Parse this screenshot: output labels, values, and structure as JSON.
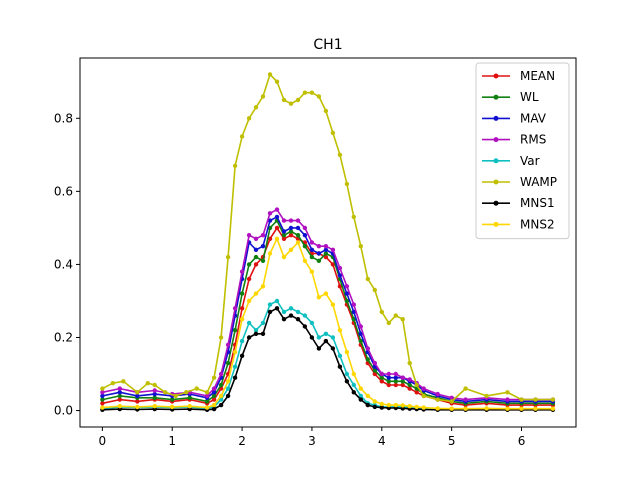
{
  "chart_data": {
    "type": "line",
    "title": "CH1",
    "xlabel": "",
    "ylabel": "",
    "xlim": [
      -0.32,
      6.78
    ],
    "ylim": [
      -0.045,
      0.965
    ],
    "xticks": [
      0,
      1,
      2,
      3,
      4,
      5,
      6
    ],
    "yticks": [
      0.0,
      0.2,
      0.4,
      0.6,
      0.8
    ],
    "ytick_labels": [
      "0.0",
      "0.2",
      "0.4",
      "0.6",
      "0.8"
    ],
    "legend_position": "top-right",
    "grid": false,
    "series": [
      {
        "name": "MEAN",
        "color": "#e01010",
        "x": [
          0,
          0.25,
          0.5,
          0.75,
          1,
          1.25,
          1.5,
          1.6,
          1.7,
          1.8,
          1.9,
          2,
          2.1,
          2.2,
          2.3,
          2.4,
          2.5,
          2.6,
          2.7,
          2.8,
          2.9,
          3,
          3.1,
          3.2,
          3.3,
          3.4,
          3.5,
          3.6,
          3.7,
          3.8,
          3.9,
          4,
          4.1,
          4.2,
          4.3,
          4.4,
          4.5,
          4.6,
          4.8,
          5,
          5.2,
          5.5,
          5.8,
          6,
          6.2,
          6.45
        ],
        "y": [
          0.02,
          0.03,
          0.025,
          0.03,
          0.025,
          0.03,
          0.02,
          0.03,
          0.06,
          0.1,
          0.18,
          0.28,
          0.36,
          0.4,
          0.42,
          0.47,
          0.5,
          0.47,
          0.48,
          0.47,
          0.46,
          0.43,
          0.43,
          0.42,
          0.4,
          0.34,
          0.29,
          0.24,
          0.18,
          0.13,
          0.1,
          0.08,
          0.07,
          0.07,
          0.07,
          0.06,
          0.05,
          0.04,
          0.03,
          0.02,
          0.015,
          0.02,
          0.015,
          0.015,
          0.015,
          0.015
        ]
      },
      {
        "name": "WL",
        "color": "#108010",
        "x": [
          0,
          0.25,
          0.5,
          0.75,
          1,
          1.25,
          1.5,
          1.6,
          1.7,
          1.8,
          1.9,
          2,
          2.1,
          2.2,
          2.3,
          2.4,
          2.5,
          2.6,
          2.7,
          2.8,
          2.9,
          3,
          3.1,
          3.2,
          3.3,
          3.4,
          3.5,
          3.6,
          3.7,
          3.8,
          3.9,
          4,
          4.1,
          4.2,
          4.3,
          4.4,
          4.5,
          4.6,
          4.8,
          5,
          5.2,
          5.5,
          5.8,
          6,
          6.2,
          6.45
        ],
        "y": [
          0.03,
          0.04,
          0.035,
          0.035,
          0.03,
          0.035,
          0.025,
          0.04,
          0.07,
          0.13,
          0.22,
          0.32,
          0.4,
          0.42,
          0.41,
          0.5,
          0.52,
          0.48,
          0.49,
          0.48,
          0.45,
          0.42,
          0.41,
          0.43,
          0.42,
          0.36,
          0.3,
          0.25,
          0.19,
          0.14,
          0.11,
          0.09,
          0.08,
          0.08,
          0.08,
          0.07,
          0.06,
          0.045,
          0.035,
          0.025,
          0.02,
          0.025,
          0.02,
          0.02,
          0.02,
          0.02
        ]
      },
      {
        "name": "MAV",
        "color": "#1010d0",
        "x": [
          0,
          0.25,
          0.5,
          0.75,
          1,
          1.25,
          1.5,
          1.6,
          1.7,
          1.8,
          1.9,
          2,
          2.1,
          2.2,
          2.3,
          2.4,
          2.5,
          2.6,
          2.7,
          2.8,
          2.9,
          3,
          3.1,
          3.2,
          3.3,
          3.4,
          3.5,
          3.6,
          3.7,
          3.8,
          3.9,
          4,
          4.1,
          4.2,
          4.3,
          4.4,
          4.5,
          4.6,
          4.8,
          5,
          5.2,
          5.5,
          5.8,
          6,
          6.2,
          6.45
        ],
        "y": [
          0.04,
          0.05,
          0.04,
          0.045,
          0.04,
          0.045,
          0.035,
          0.05,
          0.09,
          0.16,
          0.26,
          0.36,
          0.46,
          0.44,
          0.45,
          0.52,
          0.53,
          0.49,
          0.5,
          0.5,
          0.48,
          0.44,
          0.43,
          0.44,
          0.43,
          0.37,
          0.32,
          0.27,
          0.21,
          0.16,
          0.12,
          0.1,
          0.09,
          0.09,
          0.09,
          0.08,
          0.07,
          0.055,
          0.04,
          0.03,
          0.025,
          0.03,
          0.025,
          0.025,
          0.025,
          0.025
        ]
      },
      {
        "name": "RMS",
        "color": "#b010c0",
        "x": [
          0,
          0.25,
          0.5,
          0.75,
          1,
          1.25,
          1.5,
          1.6,
          1.7,
          1.8,
          1.9,
          2,
          2.1,
          2.2,
          2.3,
          2.4,
          2.5,
          2.6,
          2.7,
          2.8,
          2.9,
          3,
          3.1,
          3.2,
          3.3,
          3.4,
          3.5,
          3.6,
          3.7,
          3.8,
          3.9,
          4,
          4.1,
          4.2,
          4.3,
          4.4,
          4.5,
          4.6,
          4.8,
          5,
          5.2,
          5.5,
          5.8,
          6,
          6.2,
          6.45
        ],
        "y": [
          0.05,
          0.06,
          0.05,
          0.055,
          0.045,
          0.05,
          0.04,
          0.06,
          0.1,
          0.18,
          0.28,
          0.38,
          0.48,
          0.47,
          0.48,
          0.54,
          0.55,
          0.52,
          0.52,
          0.52,
          0.5,
          0.46,
          0.45,
          0.45,
          0.44,
          0.39,
          0.34,
          0.29,
          0.23,
          0.17,
          0.13,
          0.1,
          0.1,
          0.1,
          0.09,
          0.085,
          0.075,
          0.06,
          0.045,
          0.035,
          0.03,
          0.035,
          0.03,
          0.03,
          0.03,
          0.03
        ]
      },
      {
        "name": "Var",
        "color": "#10c0c0",
        "x": [
          0,
          0.25,
          0.5,
          0.75,
          1,
          1.25,
          1.5,
          1.6,
          1.7,
          1.8,
          1.9,
          2,
          2.1,
          2.2,
          2.3,
          2.4,
          2.5,
          2.6,
          2.7,
          2.8,
          2.9,
          3,
          3.1,
          3.2,
          3.3,
          3.4,
          3.5,
          3.6,
          3.7,
          3.8,
          3.9,
          4,
          4.1,
          4.2,
          4.3,
          4.4,
          4.5,
          4.6,
          4.8,
          5,
          5.2,
          5.5,
          5.8,
          6,
          6.2,
          6.45
        ],
        "y": [
          0.005,
          0.01,
          0.008,
          0.01,
          0.008,
          0.01,
          0.006,
          0.01,
          0.03,
          0.06,
          0.12,
          0.19,
          0.24,
          0.22,
          0.24,
          0.29,
          0.3,
          0.27,
          0.28,
          0.27,
          0.26,
          0.24,
          0.2,
          0.21,
          0.2,
          0.15,
          0.1,
          0.07,
          0.04,
          0.02,
          0.015,
          0.01,
          0.01,
          0.01,
          0.01,
          0.008,
          0.006,
          0.005,
          0.004,
          0.003,
          0.003,
          0.004,
          0.003,
          0.003,
          0.003,
          0.003
        ]
      },
      {
        "name": "WAMP",
        "color": "#bfbf00",
        "x": [
          0,
          0.15,
          0.3,
          0.5,
          0.65,
          0.75,
          0.9,
          1.05,
          1.2,
          1.35,
          1.5,
          1.6,
          1.7,
          1.8,
          1.9,
          2,
          2.1,
          2.2,
          2.3,
          2.4,
          2.5,
          2.6,
          2.7,
          2.8,
          2.9,
          3,
          3.1,
          3.2,
          3.3,
          3.4,
          3.5,
          3.6,
          3.7,
          3.8,
          3.9,
          4,
          4.1,
          4.2,
          4.3,
          4.4,
          4.5,
          4.6,
          4.8,
          5,
          5.2,
          5.5,
          5.8,
          6,
          6.2,
          6.45
        ],
        "y": [
          0.06,
          0.075,
          0.08,
          0.05,
          0.075,
          0.07,
          0.05,
          0.04,
          0.05,
          0.06,
          0.05,
          0.09,
          0.2,
          0.42,
          0.67,
          0.75,
          0.8,
          0.83,
          0.86,
          0.92,
          0.9,
          0.85,
          0.84,
          0.85,
          0.87,
          0.87,
          0.86,
          0.82,
          0.76,
          0.7,
          0.62,
          0.53,
          0.45,
          0.36,
          0.33,
          0.27,
          0.24,
          0.26,
          0.25,
          0.13,
          0.07,
          0.04,
          0.03,
          0.025,
          0.06,
          0.04,
          0.05,
          0.03,
          0.03,
          0.03
        ]
      },
      {
        "name": "MNS1",
        "color": "#000000",
        "x": [
          0,
          0.25,
          0.5,
          0.75,
          1,
          1.25,
          1.5,
          1.6,
          1.7,
          1.8,
          1.9,
          2,
          2.1,
          2.2,
          2.3,
          2.4,
          2.5,
          2.6,
          2.7,
          2.8,
          2.9,
          3,
          3.1,
          3.2,
          3.3,
          3.4,
          3.5,
          3.6,
          3.7,
          3.8,
          3.9,
          4,
          4.1,
          4.2,
          4.3,
          4.4,
          4.5,
          4.6,
          4.8,
          5,
          5.2,
          5.5,
          5.8,
          6,
          6.2,
          6.45
        ],
        "y": [
          0.002,
          0.004,
          0.003,
          0.004,
          0.003,
          0.004,
          0.002,
          0.004,
          0.015,
          0.04,
          0.09,
          0.15,
          0.2,
          0.21,
          0.21,
          0.27,
          0.28,
          0.25,
          0.26,
          0.25,
          0.23,
          0.2,
          0.17,
          0.19,
          0.17,
          0.12,
          0.08,
          0.05,
          0.03,
          0.015,
          0.01,
          0.008,
          0.007,
          0.007,
          0.006,
          0.005,
          0.004,
          0.003,
          0.002,
          0.002,
          0.002,
          0.002,
          0.002,
          0.002,
          0.002,
          0.002
        ]
      },
      {
        "name": "MNS2",
        "color": "#ffd700",
        "x": [
          0,
          0.25,
          0.5,
          0.75,
          1,
          1.25,
          1.5,
          1.6,
          1.7,
          1.8,
          1.9,
          2,
          2.1,
          2.2,
          2.3,
          2.4,
          2.5,
          2.6,
          2.7,
          2.8,
          2.9,
          3,
          3.1,
          3.2,
          3.3,
          3.4,
          3.5,
          3.6,
          3.7,
          3.8,
          3.9,
          4,
          4.1,
          4.2,
          4.3,
          4.4,
          4.5,
          4.6,
          4.8,
          5,
          5.2,
          5.5,
          5.8,
          6,
          6.2,
          6.45
        ],
        "y": [
          0.008,
          0.012,
          0.01,
          0.012,
          0.01,
          0.012,
          0.008,
          0.015,
          0.04,
          0.08,
          0.16,
          0.25,
          0.3,
          0.32,
          0.34,
          0.43,
          0.47,
          0.42,
          0.44,
          0.46,
          0.41,
          0.38,
          0.31,
          0.32,
          0.29,
          0.22,
          0.16,
          0.1,
          0.06,
          0.04,
          0.025,
          0.018,
          0.015,
          0.015,
          0.014,
          0.012,
          0.01,
          0.008,
          0.006,
          0.005,
          0.005,
          0.006,
          0.005,
          0.005,
          0.005,
          0.005
        ]
      }
    ]
  }
}
